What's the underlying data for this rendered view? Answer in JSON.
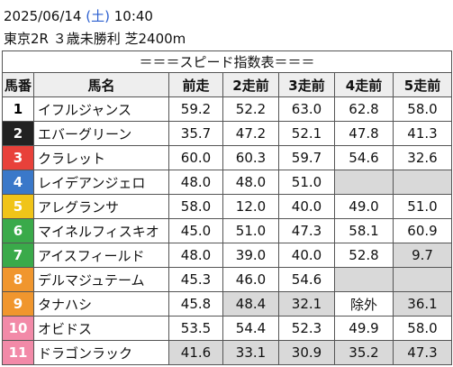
{
  "header": {
    "date": "2025/06/14",
    "weekday": "(土)",
    "time": "10:40",
    "race": "東京2R ３歳未勝利 芝2400m"
  },
  "table": {
    "title": "＝＝＝スピード指数表＝＝＝",
    "columns": [
      "馬番",
      "馬名",
      "前走",
      "2走前",
      "3走前",
      "4走前",
      "5走前"
    ],
    "rows": [
      {
        "number": "1",
        "name": "イフルジャンス",
        "frame_color": "#ffffff",
        "number_color": "#000000",
        "scores": [
          "59.2",
          "52.2",
          "63.0",
          "62.8",
          "58.0"
        ],
        "shaded": []
      },
      {
        "number": "2",
        "name": "エバーグリーン",
        "frame_color": "#222222",
        "number_color": "#ffffff",
        "scores": [
          "35.7",
          "47.2",
          "52.1",
          "47.8",
          "41.3"
        ],
        "shaded": []
      },
      {
        "number": "3",
        "name": "クラレット",
        "frame_color": "#e8413a",
        "number_color": "#ffffff",
        "scores": [
          "60.0",
          "60.3",
          "59.7",
          "54.6",
          "32.6"
        ],
        "shaded": []
      },
      {
        "number": "4",
        "name": "レイデアンジェロ",
        "frame_color": "#3a78c9",
        "number_color": "#ffffff",
        "scores": [
          "48.0",
          "48.0",
          "51.0",
          "",
          ""
        ],
        "shaded": [
          3,
          4
        ]
      },
      {
        "number": "5",
        "name": "アレグランサ",
        "frame_color": "#f0c419",
        "number_color": "#ffffff",
        "scores": [
          "58.0",
          "12.0",
          "40.0",
          "49.0",
          "51.0"
        ],
        "shaded": []
      },
      {
        "number": "6",
        "name": "マイネルフィスキオ",
        "frame_color": "#3aaa4a",
        "number_color": "#ffffff",
        "scores": [
          "45.0",
          "51.0",
          "47.3",
          "58.1",
          "60.9"
        ],
        "shaded": []
      },
      {
        "number": "7",
        "name": "アイスフィールド",
        "frame_color": "#3aaa4a",
        "number_color": "#ffffff",
        "scores": [
          "48.0",
          "39.0",
          "40.0",
          "52.8",
          "9.7"
        ],
        "shaded": [
          4
        ]
      },
      {
        "number": "8",
        "name": "デルマジュテーム",
        "frame_color": "#f0962e",
        "number_color": "#ffffff",
        "scores": [
          "45.3",
          "46.0",
          "54.6",
          "",
          ""
        ],
        "shaded": [
          3,
          4
        ]
      },
      {
        "number": "9",
        "name": "タナハシ",
        "frame_color": "#f0962e",
        "number_color": "#ffffff",
        "scores": [
          "45.8",
          "48.4",
          "32.1",
          "除外",
          "36.1"
        ],
        "shaded": [
          1,
          2,
          4
        ]
      },
      {
        "number": "10",
        "name": "オビドス",
        "frame_color": "#f28aa8",
        "number_color": "#ffffff",
        "scores": [
          "53.5",
          "54.4",
          "52.3",
          "49.9",
          "58.0"
        ],
        "shaded": []
      },
      {
        "number": "11",
        "name": "ドラゴンラック",
        "frame_color": "#f28aa8",
        "number_color": "#ffffff",
        "scores": [
          "41.6",
          "33.1",
          "30.9",
          "35.2",
          "47.3"
        ],
        "shaded": [
          0,
          1,
          2,
          3,
          4
        ]
      }
    ]
  }
}
